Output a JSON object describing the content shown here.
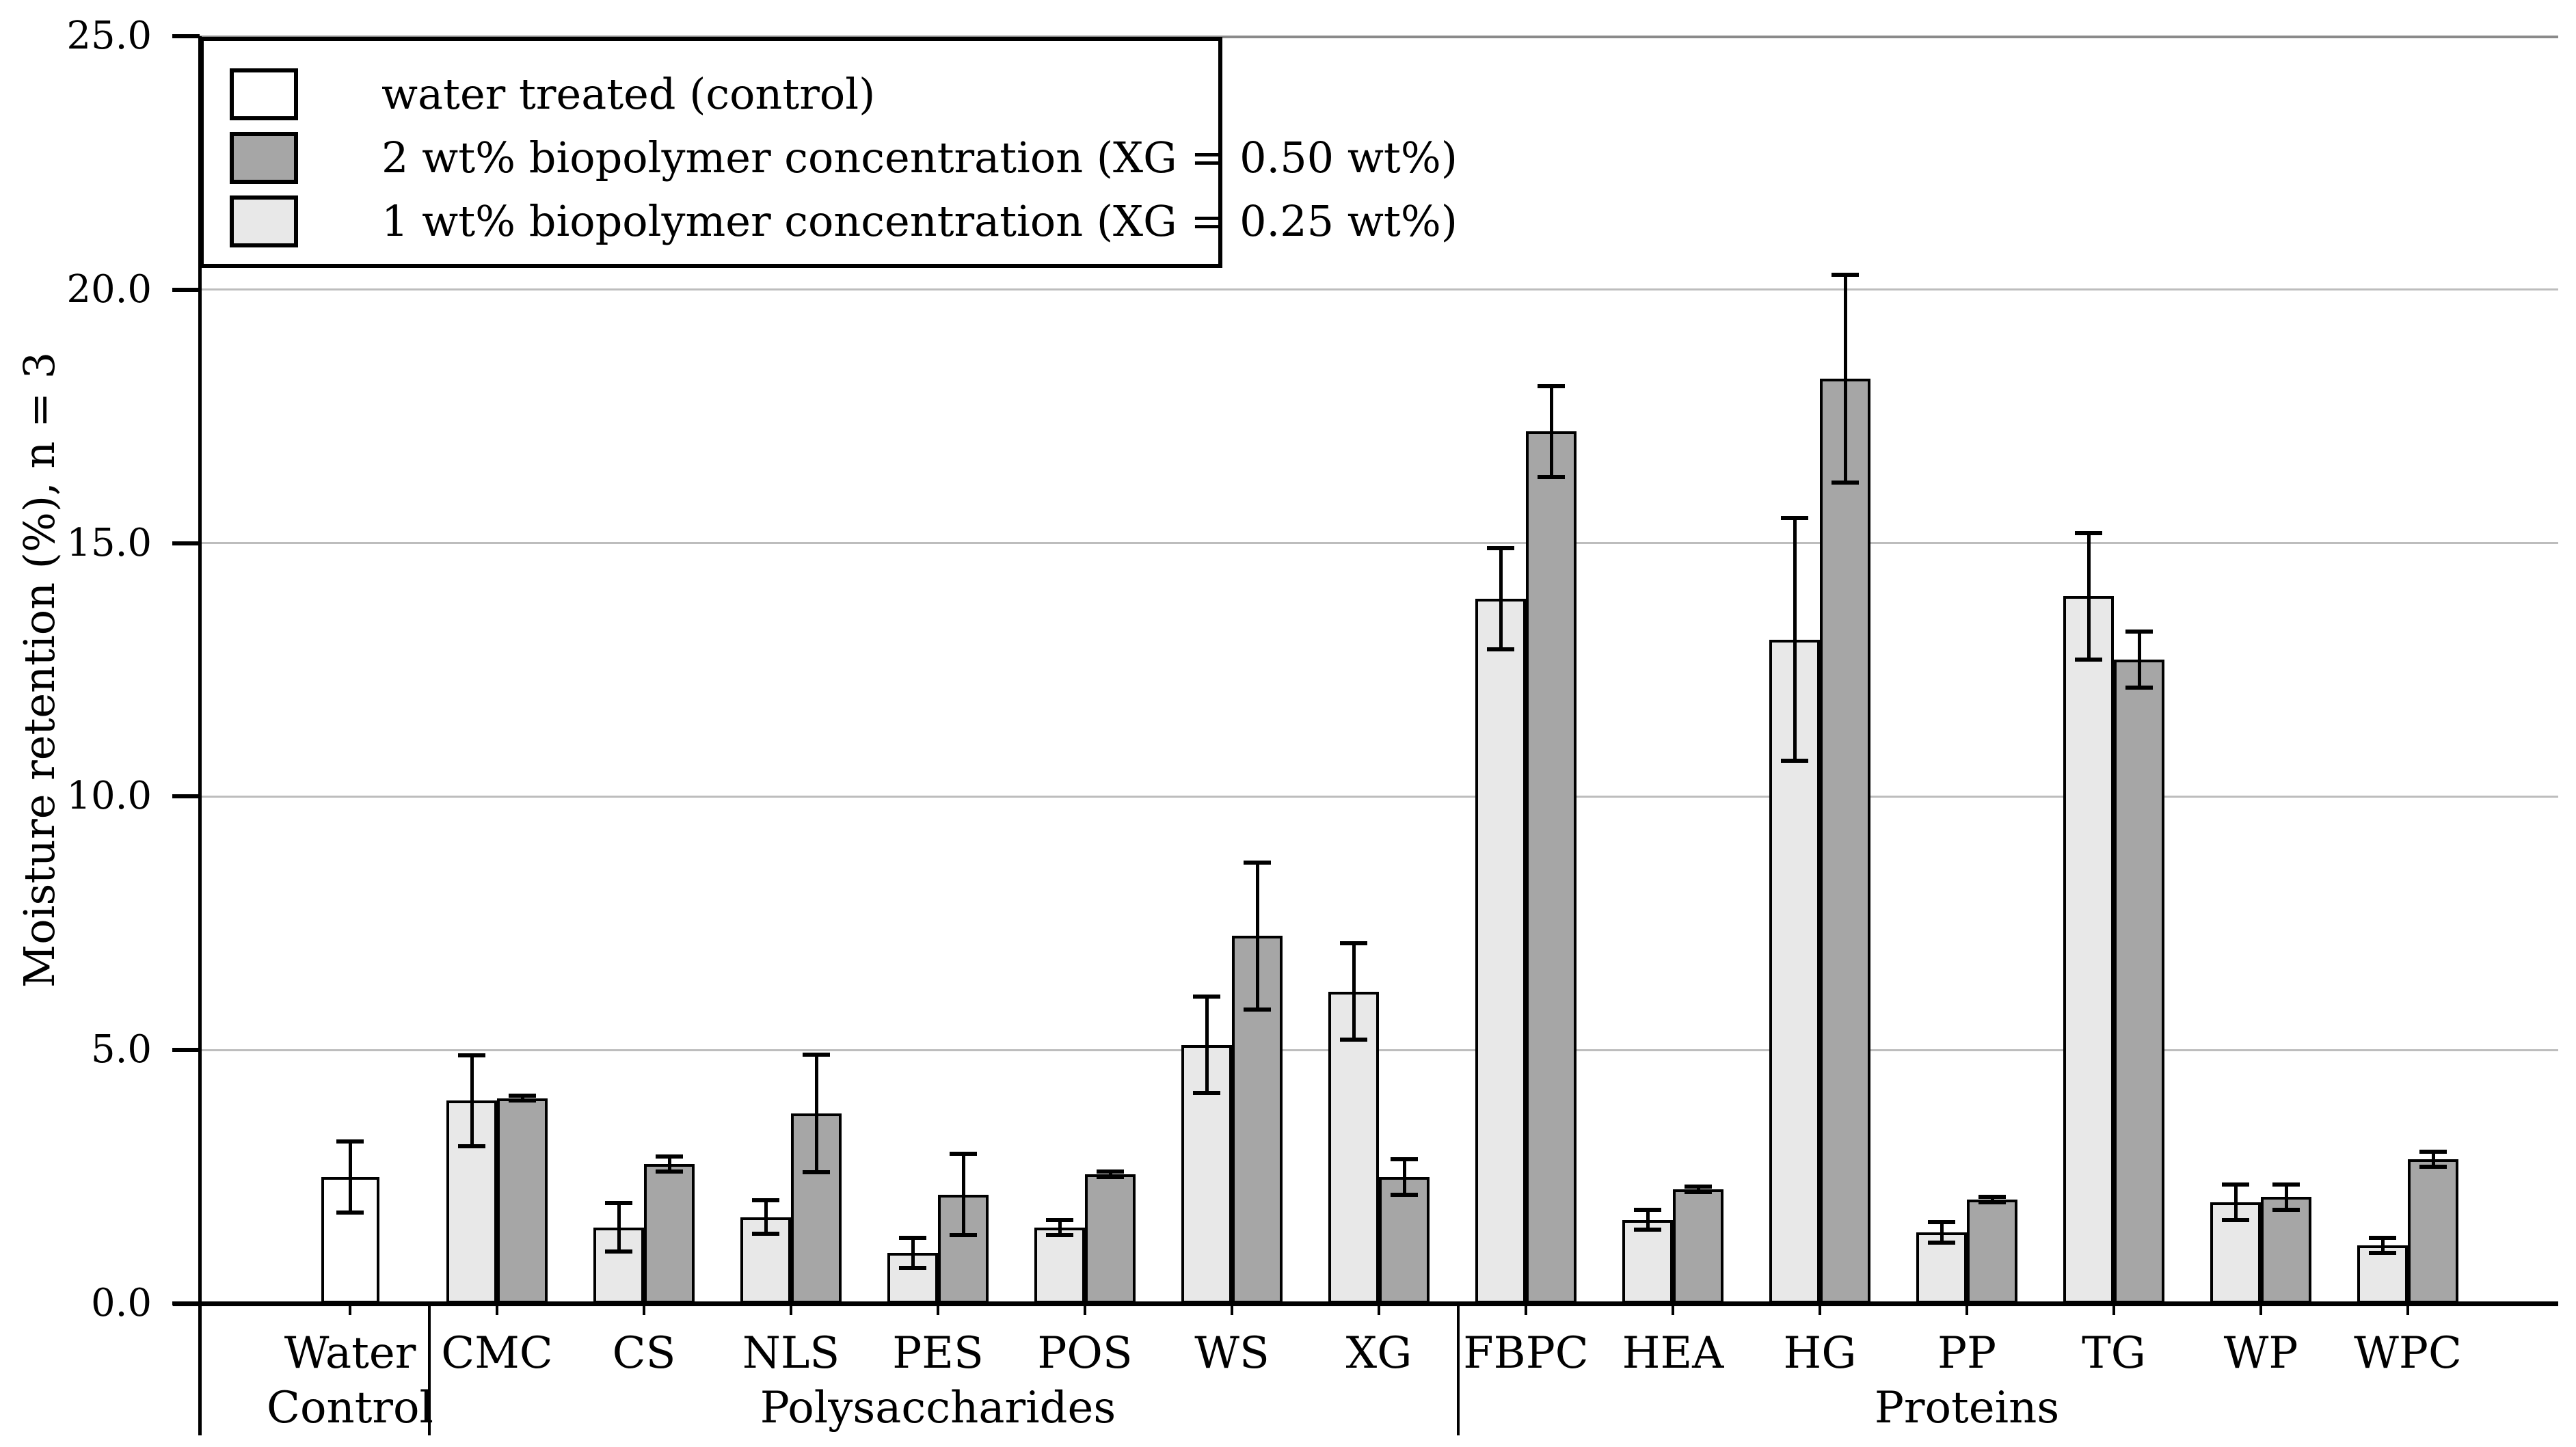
{
  "legend": {
    "entries": [
      {
        "key": "control",
        "label": "water treated (control)",
        "color": "#ffffff"
      },
      {
        "key": "conc2",
        "label": "2 wt% biopolymer concentration (XG = 0.50 wt%)",
        "color": "#a6a6a6"
      },
      {
        "key": "conc1",
        "label": "1 wt% biopolymer concentration (XG = 0.25 wt%)",
        "color": "#e8e8e8"
      }
    ]
  },
  "chart_data": {
    "type": "bar",
    "title": "",
    "xlabel": "",
    "ylabel": "Moisture retention (%), n = 3",
    "ylim": [
      0,
      25
    ],
    "grid": true,
    "legend_position": "top-left",
    "yticks": [
      {
        "value": 0,
        "label": "0.0"
      },
      {
        "value": 5,
        "label": "5.0"
      },
      {
        "value": 10,
        "label": "10.0"
      },
      {
        "value": 15,
        "label": "15.0"
      },
      {
        "value": 20,
        "label": "20.0"
      },
      {
        "value": 25,
        "label": "25.0"
      }
    ],
    "series_colors": {
      "control": "#ffffff",
      "conc1": "#e8e8e8",
      "conc2": "#a6a6a6"
    },
    "grid_color": "#bdbdbd",
    "axis_color": "#000000",
    "sections": [
      {
        "label": "Polysaccharides",
        "from": 1,
        "to": 7
      },
      {
        "label": "Proteins",
        "from": 8,
        "to": 14
      }
    ],
    "categories": [
      {
        "label": "Water Control",
        "label_lines": [
          "Water",
          "Control"
        ],
        "bars": [
          {
            "series": "control",
            "value": 2.5,
            "error": 0.7
          }
        ]
      },
      {
        "label": "CMC",
        "bars": [
          {
            "series": "conc1",
            "value": 4.0,
            "error": 0.9
          },
          {
            "series": "conc2",
            "value": 4.05,
            "error": 0.05
          }
        ]
      },
      {
        "label": "CS",
        "bars": [
          {
            "series": "conc1",
            "value": 1.5,
            "error": 0.48
          },
          {
            "series": "conc2",
            "value": 2.75,
            "error": 0.15
          }
        ]
      },
      {
        "label": "NLS",
        "bars": [
          {
            "series": "conc1",
            "value": 1.7,
            "error": 0.33
          },
          {
            "series": "conc2",
            "value": 3.75,
            "error": 1.16
          }
        ]
      },
      {
        "label": "PES",
        "bars": [
          {
            "series": "conc1",
            "value": 1.0,
            "error": 0.3
          },
          {
            "series": "conc2",
            "value": 2.15,
            "error": 0.8
          }
        ]
      },
      {
        "label": "POS",
        "bars": [
          {
            "series": "conc1",
            "value": 1.5,
            "error": 0.15
          },
          {
            "series": "conc2",
            "value": 2.55,
            "error": 0.05
          }
        ]
      },
      {
        "label": "WS",
        "bars": [
          {
            "series": "conc1",
            "value": 5.1,
            "error": 0.95
          },
          {
            "series": "conc2",
            "value": 7.25,
            "error": 1.45
          }
        ]
      },
      {
        "label": "XG",
        "bars": [
          {
            "series": "conc1",
            "value": 6.15,
            "error": 0.95
          },
          {
            "series": "conc2",
            "value": 2.5,
            "error": 0.35
          }
        ]
      },
      {
        "label": "FBPC",
        "bars": [
          {
            "series": "conc1",
            "value": 13.9,
            "error": 1.0
          },
          {
            "series": "conc2",
            "value": 17.2,
            "error": 0.9
          }
        ]
      },
      {
        "label": "HEA",
        "bars": [
          {
            "series": "conc1",
            "value": 1.65,
            "error": 0.2
          },
          {
            "series": "conc2",
            "value": 2.25,
            "error": 0.05
          }
        ]
      },
      {
        "label": "HG",
        "bars": [
          {
            "series": "conc1",
            "value": 13.1,
            "error": 2.4
          },
          {
            "series": "conc2",
            "value": 18.25,
            "error": 2.05
          }
        ]
      },
      {
        "label": "PP",
        "bars": [
          {
            "series": "conc1",
            "value": 1.4,
            "error": 0.2
          },
          {
            "series": "conc2",
            "value": 2.05,
            "error": 0.05
          }
        ]
      },
      {
        "label": "TG",
        "bars": [
          {
            "series": "conc1",
            "value": 13.95,
            "error": 1.25
          },
          {
            "series": "conc2",
            "value": 12.7,
            "error": 0.55
          }
        ]
      },
      {
        "label": "WP",
        "bars": [
          {
            "series": "conc1",
            "value": 2.0,
            "error": 0.35
          },
          {
            "series": "conc2",
            "value": 2.1,
            "error": 0.25
          }
        ]
      },
      {
        "label": "WPC",
        "bars": [
          {
            "series": "conc1",
            "value": 1.15,
            "error": 0.15
          },
          {
            "series": "conc2",
            "value": 2.85,
            "error": 0.15
          }
        ]
      }
    ]
  }
}
